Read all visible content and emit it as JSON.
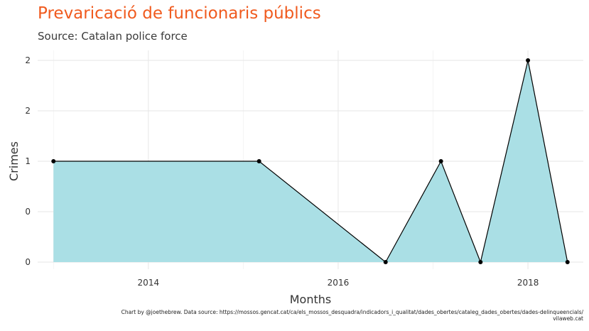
{
  "chart_data": {
    "type": "area",
    "title": "Prevaricació de funcionaris públics",
    "subtitle": "Source: Catalan police force",
    "xlabel": "Months",
    "ylabel": "Crimes",
    "x_tick_labels": [
      "2014",
      "2016",
      "2018"
    ],
    "y_tick_labels": [
      "0",
      "0",
      "1",
      "2",
      "2"
    ],
    "y_tick_values": [
      0,
      0.5,
      1,
      1.5,
      2
    ],
    "ylim": [
      0,
      2
    ],
    "xlim": [
      "2012-11",
      "2018-08"
    ],
    "grid": true,
    "series": [
      {
        "x": [
          "2013-01",
          "2015-03",
          "2016-07",
          "2017-02",
          "2017-07",
          "2018-01",
          "2018-06"
        ],
        "values": [
          1,
          1,
          0,
          1,
          0,
          2,
          0
        ]
      }
    ],
    "fill_color": "#aadfe5",
    "line_color": "#000000",
    "caption": "Chart by @joethebrew. Data source: https://mossos.gencat.cat/ca/els_mossos_desquadra/indicadors_i_qualitat/dades_obertes/cataleg_dades_obertes/dades-delinqueencials/",
    "caption2": "vilaweb.cat"
  }
}
